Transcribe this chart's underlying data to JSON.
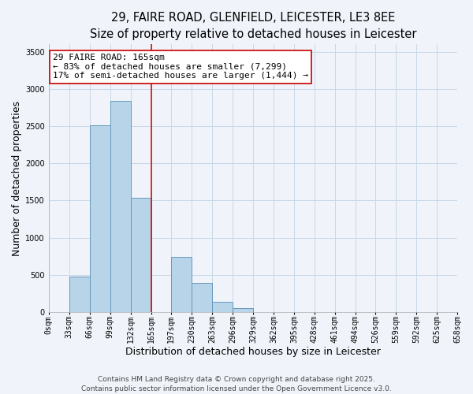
{
  "title_line1": "29, FAIRE ROAD, GLENFIELD, LEICESTER, LE3 8EE",
  "title_line2": "Size of property relative to detached houses in Leicester",
  "xlabel": "Distribution of detached houses by size in Leicester",
  "ylabel": "Number of detached properties",
  "bar_edges": [
    0,
    33,
    66,
    99,
    132,
    165,
    197,
    230,
    263,
    296,
    329,
    362,
    395,
    428,
    461,
    494,
    526,
    559,
    592,
    625,
    658
  ],
  "bar_heights": [
    0,
    480,
    2510,
    2840,
    1540,
    0,
    740,
    390,
    140,
    55,
    0,
    0,
    0,
    0,
    0,
    0,
    0,
    0,
    0,
    0
  ],
  "bar_color": "#b8d4e8",
  "bar_edgecolor": "#6699bb",
  "vline_x": 165,
  "vline_color": "#cc1111",
  "annotation_title": "29 FAIRE ROAD: 165sqm",
  "annotation_line2": "← 83% of detached houses are smaller (7,299)",
  "annotation_line3": "17% of semi-detached houses are larger (1,444) →",
  "annotation_box_edgecolor": "#cc1111",
  "annotation_box_facecolor": "#ffffff",
  "ylim": [
    0,
    3600
  ],
  "yticks": [
    0,
    500,
    1000,
    1500,
    2000,
    2500,
    3000,
    3500
  ],
  "tick_labels": [
    "0sqm",
    "33sqm",
    "66sqm",
    "99sqm",
    "132sqm",
    "165sqm",
    "197sqm",
    "230sqm",
    "263sqm",
    "296sqm",
    "329sqm",
    "362sqm",
    "395sqm",
    "428sqm",
    "461sqm",
    "494sqm",
    "526sqm",
    "559sqm",
    "592sqm",
    "625sqm",
    "658sqm"
  ],
  "footer_line1": "Contains HM Land Registry data © Crown copyright and database right 2025.",
  "footer_line2": "Contains public sector information licensed under the Open Government Licence v3.0.",
  "bg_color": "#f0f4fa",
  "grid_color": "#c8d8e8",
  "title_fontsize": 10.5,
  "subtitle_fontsize": 9.5,
  "axis_label_fontsize": 9,
  "tick_fontsize": 7,
  "annotation_fontsize": 8,
  "footer_fontsize": 6.5
}
